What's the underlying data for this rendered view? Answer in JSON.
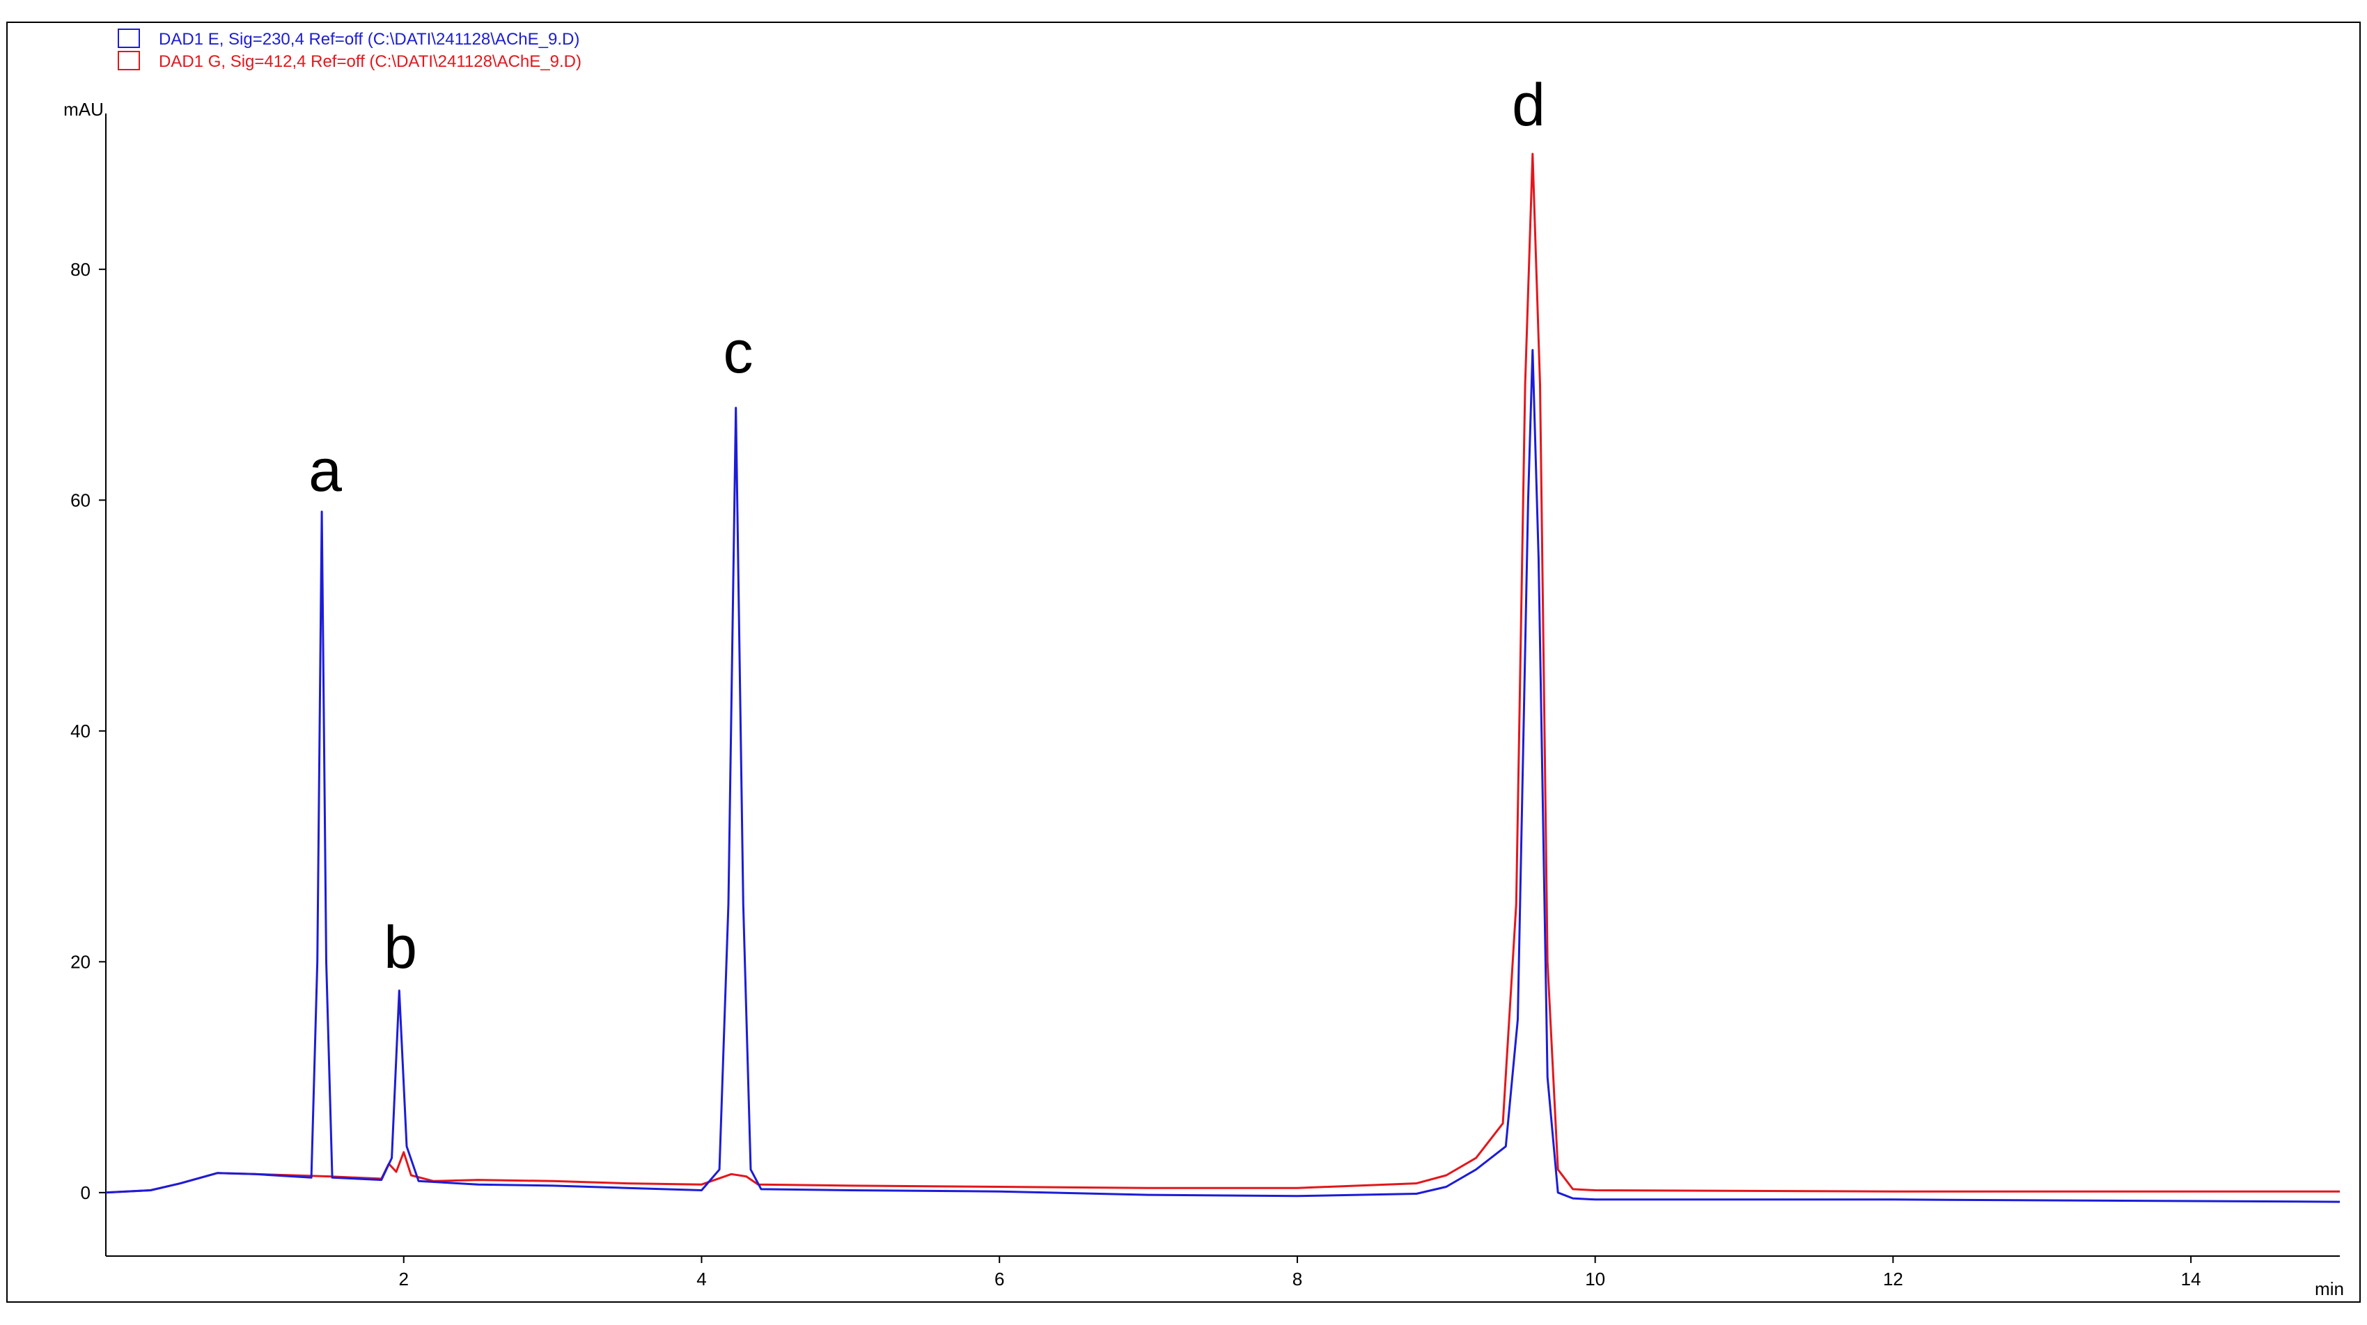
{
  "chart_data": {
    "type": "line",
    "y_label": "mAU",
    "x_label": "min",
    "xlim": [
      0,
      15
    ],
    "ylim": [
      -5.5,
      93.5
    ],
    "xticks": [
      2,
      4,
      6,
      8,
      10,
      12,
      14
    ],
    "yticks": [
      0,
      20,
      40,
      60,
      80
    ],
    "series": [
      {
        "name": "DAD1 E, Sig=230,4 Ref=off (C:\\DATI\\241128\\AChE_9.D)",
        "color": "#1c1cd8",
        "x": [
          0,
          0.3,
          0.5,
          0.75,
          1.0,
          1.38,
          1.42,
          1.45,
          1.48,
          1.52,
          1.85,
          1.92,
          1.97,
          2.02,
          2.1,
          2.5,
          3.0,
          3.5,
          4.0,
          4.12,
          4.18,
          4.23,
          4.28,
          4.33,
          4.4,
          5,
          6,
          7,
          8,
          8.8,
          9.0,
          9.2,
          9.4,
          9.48,
          9.55,
          9.58,
          9.62,
          9.68,
          9.75,
          9.85,
          10,
          12,
          15
        ],
        "values": [
          0,
          0.2,
          0.8,
          1.7,
          1.6,
          1.3,
          20,
          59,
          20,
          1.3,
          1.1,
          3,
          17.5,
          4,
          1.0,
          0.7,
          0.6,
          0.4,
          0.2,
          2,
          25,
          68,
          25,
          2,
          0.3,
          0.2,
          0.1,
          -0.2,
          -0.3,
          -0.1,
          0.5,
          2,
          4,
          15,
          60,
          73,
          55,
          10,
          0,
          -0.5,
          -0.6,
          -0.6,
          -0.8
        ]
      },
      {
        "name": "DAD1 G, Sig=412,4 Ref=off (C:\\DATI\\241128\\AChE_9.D)",
        "color": "#e3171c",
        "x": [
          0,
          0.3,
          0.5,
          0.75,
          1.0,
          1.5,
          1.85,
          1.9,
          1.95,
          2.0,
          2.05,
          2.2,
          2.5,
          3.0,
          3.5,
          4.0,
          4.2,
          4.3,
          4.38,
          5,
          6,
          7,
          8,
          8.8,
          9.0,
          9.2,
          9.38,
          9.47,
          9.53,
          9.58,
          9.63,
          9.68,
          9.75,
          9.85,
          10,
          12,
          15
        ],
        "values": [
          0,
          0.2,
          0.8,
          1.7,
          1.6,
          1.4,
          1.2,
          2.5,
          1.8,
          3.5,
          1.5,
          1.0,
          1.1,
          1.0,
          0.8,
          0.7,
          1.6,
          1.4,
          0.7,
          0.6,
          0.5,
          0.4,
          0.4,
          0.8,
          1.5,
          3,
          6,
          25,
          70,
          90,
          70,
          20,
          2,
          0.3,
          0.2,
          0.1,
          0.1
        ]
      }
    ],
    "annotations": [
      "a",
      "b",
      "c",
      "d"
    ]
  }
}
